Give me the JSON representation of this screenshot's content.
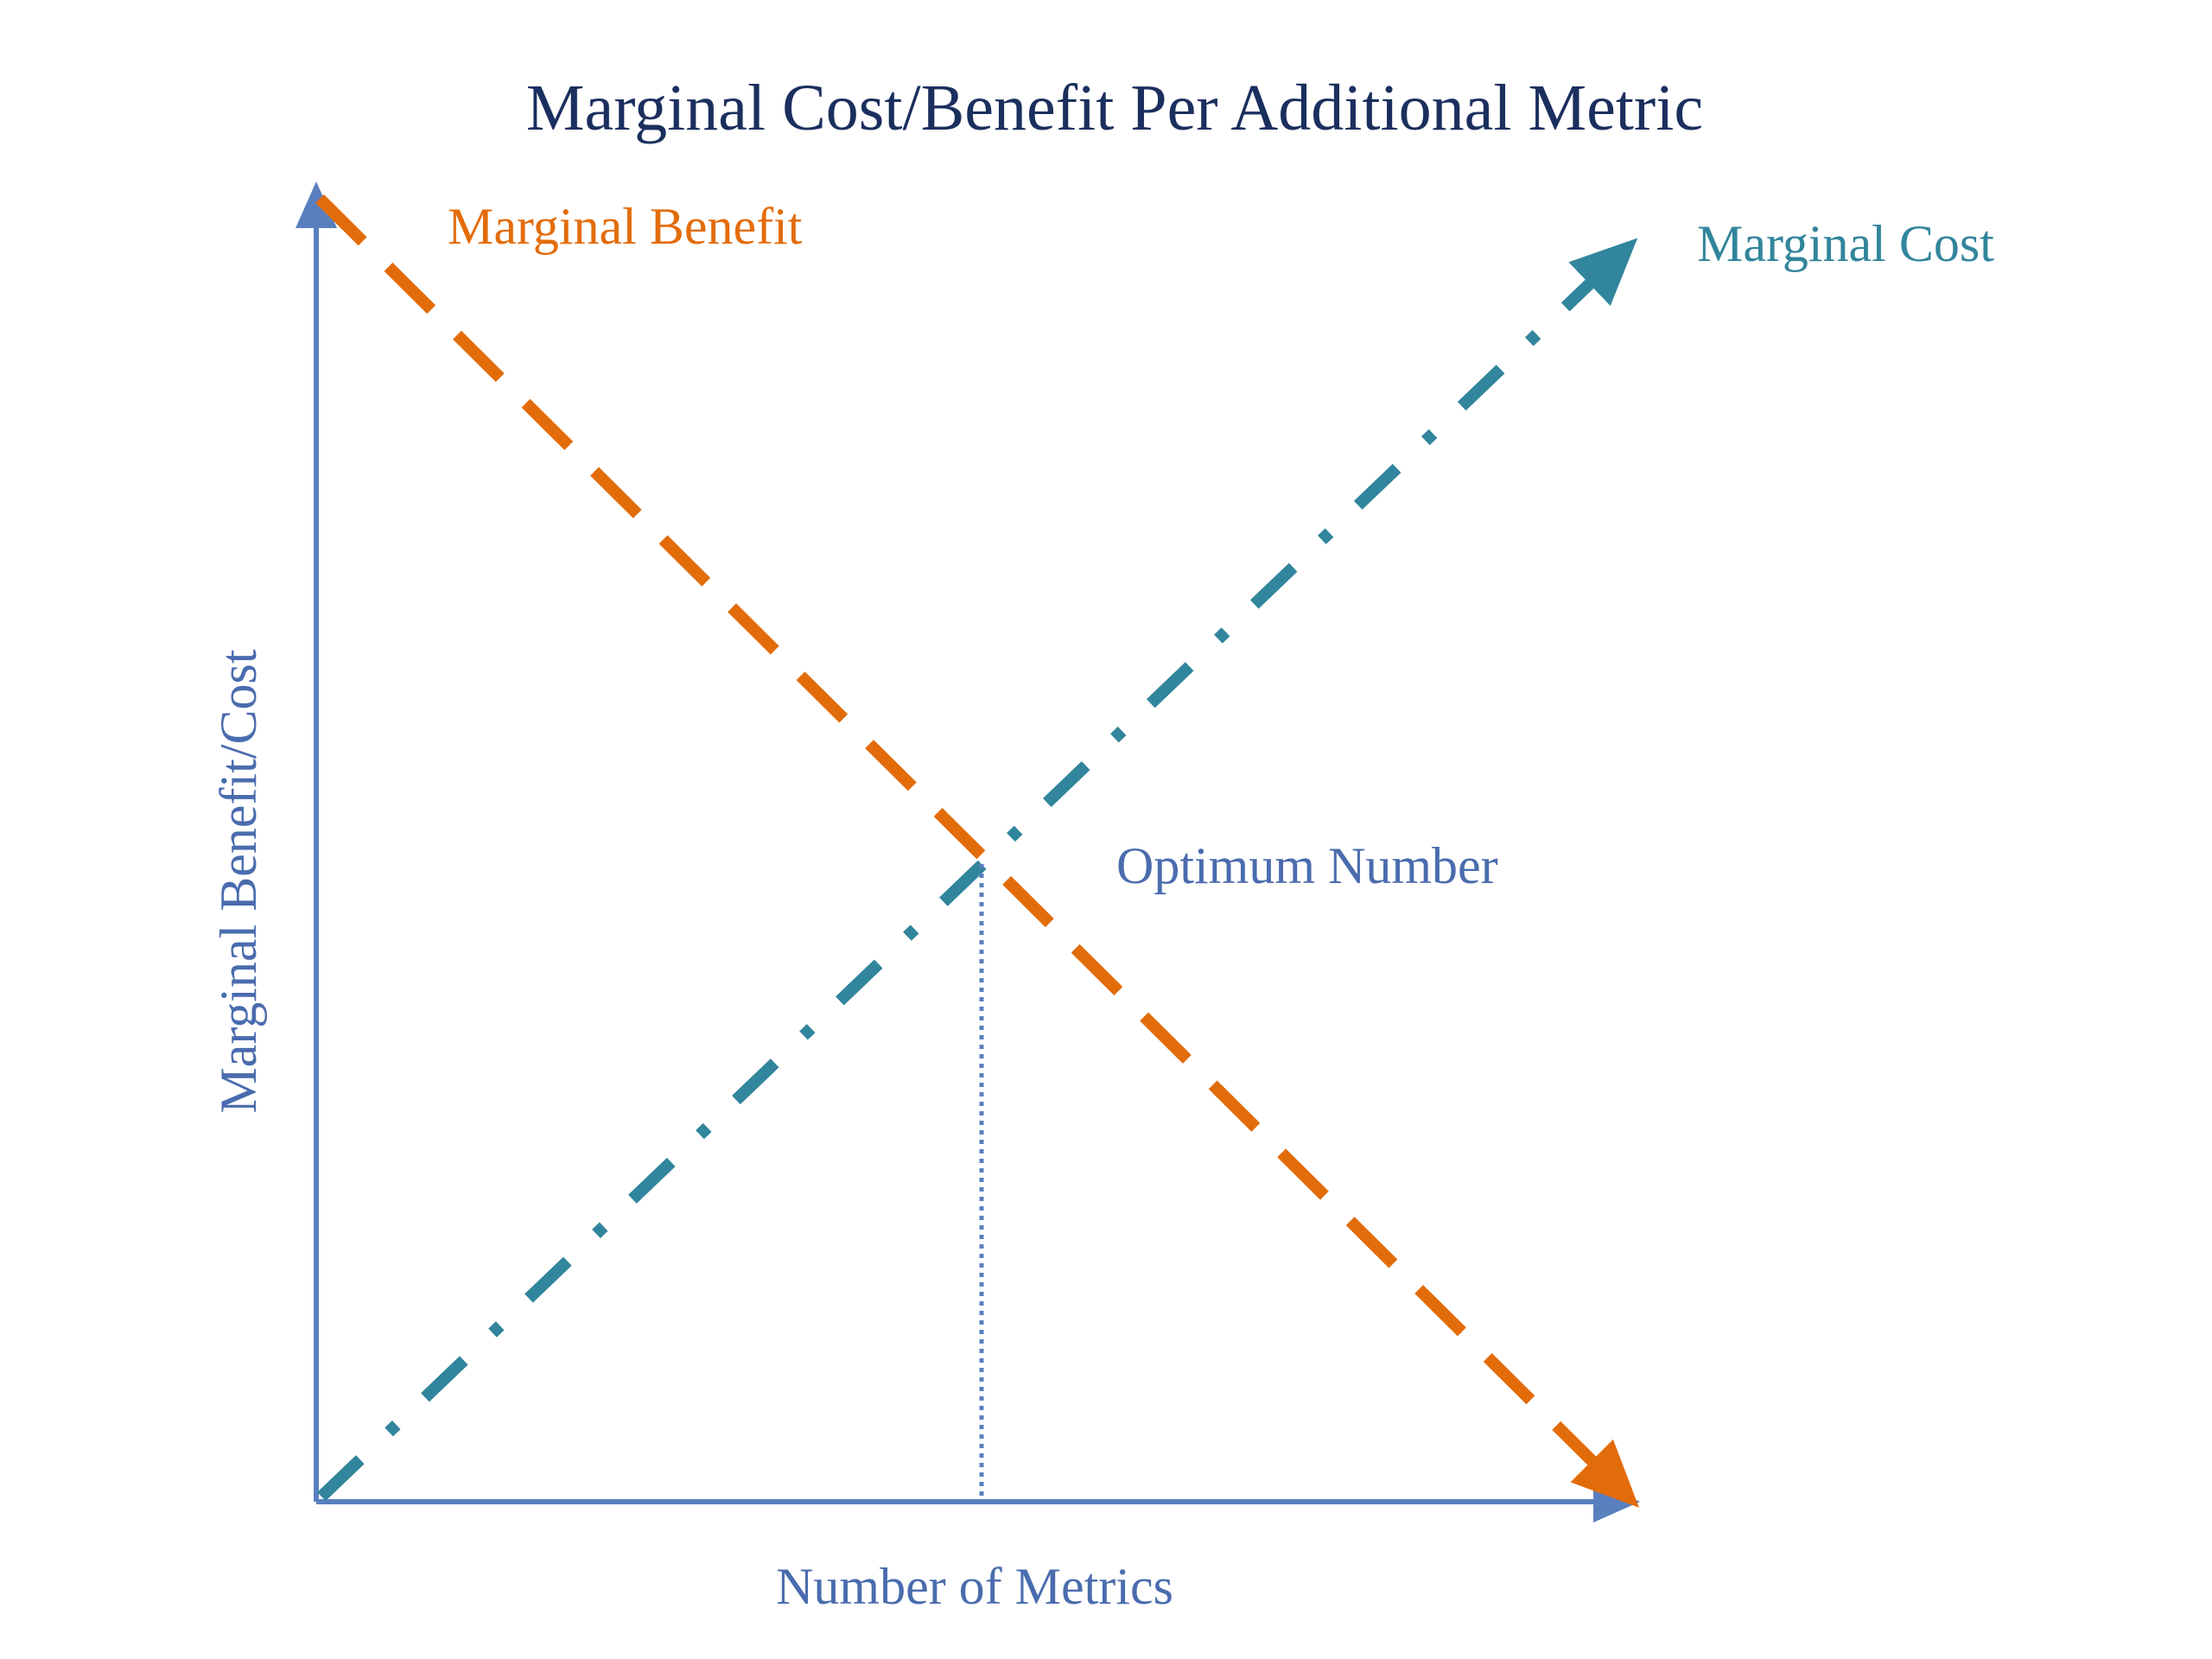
{
  "title": "Marginal Cost/Benefit Per Additional Metric",
  "labels": {
    "marginal_benefit": "Marginal Benefit",
    "marginal_cost": "Marginal Cost",
    "optimum": "Optimum Number",
    "x_axis": "Number of Metrics",
    "y_axis": "Marginal Benefit/Cost"
  },
  "colors": {
    "title": "#1b2f5e",
    "axis": "#5a7fbf",
    "axis_text": "#4a6cae",
    "benefit": "#e36c0a",
    "cost": "#31859c",
    "optimum_text": "#4a6cae",
    "optimum_line": "#5a7fbf"
  }
}
